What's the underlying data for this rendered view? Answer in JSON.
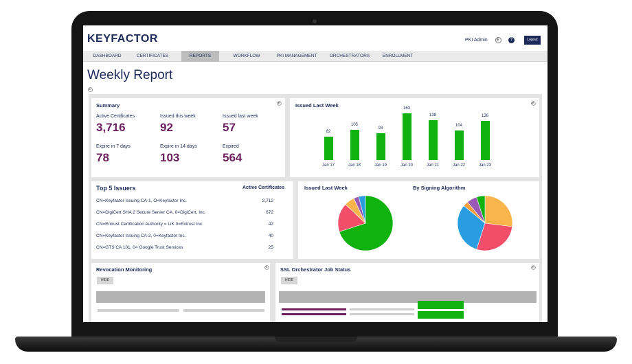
{
  "header": {
    "logo": "KEYFACTOR",
    "user": "PKI Admin",
    "help": "?",
    "logout": "Logout"
  },
  "nav": [
    "DASHBOARD",
    "CERTIFICATES",
    "REPORTS",
    "WORKFLOW",
    "PKI MANAGEMENT",
    "ORCHESTRATORS",
    "ENROLLMENT"
  ],
  "page": {
    "title": "Weekly Report"
  },
  "summary": {
    "title": "Summary",
    "items": [
      {
        "label": "Active Certificates",
        "value": "3,716"
      },
      {
        "label": "Issued this week",
        "value": "92"
      },
      {
        "label": "Issued last week",
        "value": "57"
      },
      {
        "label": "Expire in 7 days",
        "value": "78"
      },
      {
        "label": "Expire in 14 days",
        "value": "103"
      },
      {
        "label": "Expired",
        "value": "564"
      }
    ]
  },
  "chart_data": [
    {
      "type": "bar",
      "title": "Issued Last Week",
      "categories": [
        "Jan 17",
        "Jan 18",
        "Jan 19",
        "Jan 20",
        "Jan 21",
        "Jan 22",
        "Jan 23"
      ],
      "values": [
        82,
        105,
        93,
        163,
        138,
        104,
        136
      ],
      "color": "#10b210"
    },
    {
      "type": "pie",
      "title": "Issued Last Week",
      "values": [
        70,
        17,
        6,
        3,
        4
      ],
      "colors": [
        "#10b210",
        "#f24e6a",
        "#f9b54c",
        "#9b59b6",
        "#2a9de0"
      ]
    },
    {
      "type": "pie",
      "title": "By Signing Algorithm",
      "values": [
        27,
        28,
        31,
        3,
        6,
        5
      ],
      "colors": [
        "#f9b54c",
        "#f24e6a",
        "#2a9de0",
        "#f29c3a",
        "#9b59b6",
        "#10b210"
      ]
    }
  ],
  "issuers": {
    "title": "Top 5 Issuers",
    "col_header": "Active Certificates",
    "rows": [
      {
        "name": "CN=Keyfactor Issuing CA-1, O=Keyfactor Inc.",
        "count": "2,712"
      },
      {
        "name": "CN=DigiCert SHA 2 Secure Server CA, 0=DigiCert, Inc.",
        "count": "672"
      },
      {
        "name": "CN=Entrust Certification Authority = LiK 0=Entrust Inc.",
        "count": "42"
      },
      {
        "name": "CN=Keyfactor Issuing CA-2, 0=Keyfactor Inc.",
        "count": "40"
      },
      {
        "name": "CN=GTS CA 101, 0= Google Trust Services",
        "count": "25"
      }
    ]
  },
  "revocation": {
    "title": "Revocation Monitoring",
    "hide_label": "HIDE"
  },
  "ssl": {
    "title": "SSL Orchestrator Job Status",
    "hide_label": "HIDE"
  }
}
